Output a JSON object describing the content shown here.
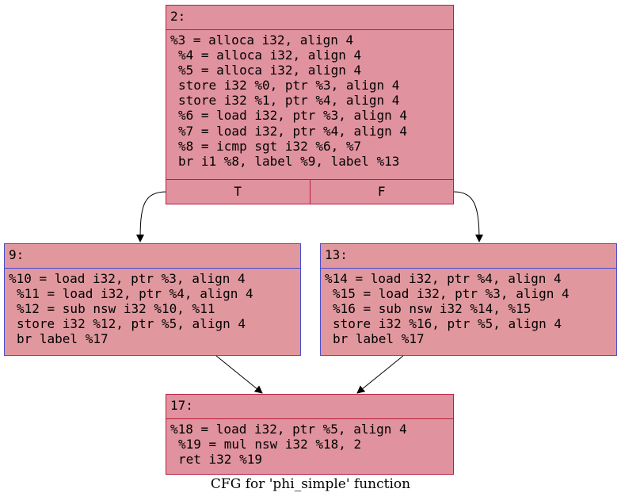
{
  "caption": "CFG for 'phi_simple' function",
  "nodes": {
    "n2": {
      "label": "2:",
      "lines": [
        "%3 = alloca i32, align 4",
        "%4 = alloca i32, align 4",
        "%5 = alloca i32, align 4",
        "store i32 %0, ptr %3, align 4",
        "store i32 %1, ptr %4, align 4",
        "%6 = load i32, ptr %3, align 4",
        "%7 = load i32, ptr %4, align 4",
        "%8 = icmp sgt i32 %6, %7",
        "br i1 %8, label %9, label %13"
      ],
      "true_label": "T",
      "false_label": "F"
    },
    "n9": {
      "label": "9:",
      "lines": [
        "%10 = load i32, ptr %3, align 4",
        "%11 = load i32, ptr %4, align 4",
        "%12 = sub nsw i32 %10, %11",
        "store i32 %12, ptr %5, align 4",
        "br label %17"
      ]
    },
    "n13": {
      "label": "13:",
      "lines": [
        "%14 = load i32, ptr %4, align 4",
        "%15 = load i32, ptr %3, align 4",
        "%16 = sub nsw i32 %14, %15",
        "store i32 %16, ptr %5, align 4",
        "br label %17"
      ]
    },
    "n17": {
      "label": "17:",
      "lines": [
        "%18 = load i32, ptr %5, align 4",
        "%19 = mul nsw i32 %18, 2",
        "ret i32 %19"
      ]
    }
  },
  "colors": {
    "red_node_fill": "#e0929e",
    "red_node_border": "#b81e3a",
    "blue_node_fill": "#e0989e",
    "blue_node_border": "#4a4ecf"
  }
}
